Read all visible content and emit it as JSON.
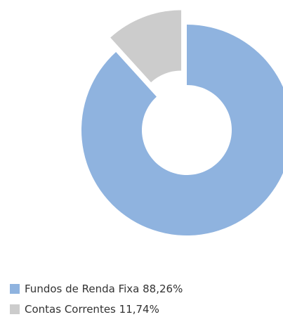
{
  "chart_data": {
    "type": "pie",
    "donut": true,
    "categories": [
      "Fundos de Renda Fixa",
      "Contas Correntes"
    ],
    "values": [
      88.26,
      11.74
    ],
    "value_labels": [
      "88,26%",
      "11,74%"
    ],
    "colors": [
      "#8fb3df",
      "#cccccc"
    ],
    "explode": [
      false,
      true
    ]
  }
}
